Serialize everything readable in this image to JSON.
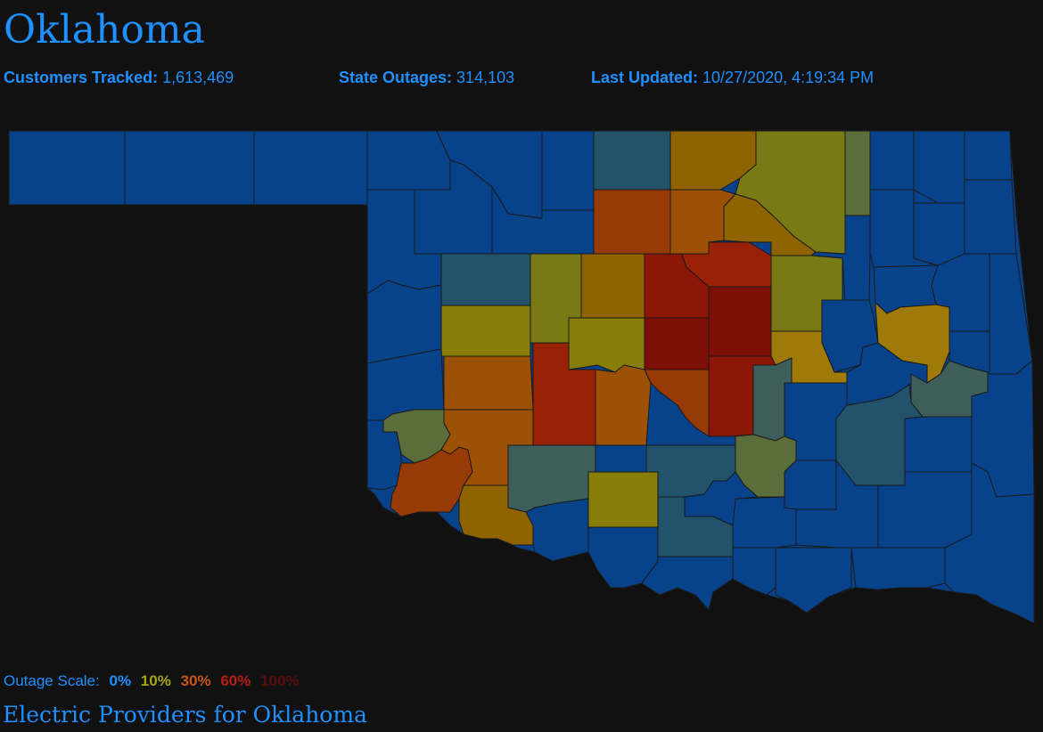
{
  "header": {
    "title": "Oklahoma",
    "customers_label": "Customers Tracked:",
    "customers_value": "1,613,469",
    "outages_label": "State Outages:",
    "outages_value": "314,103",
    "updated_label": "Last Updated:",
    "updated_value": "10/27/2020, 4:19:34 PM"
  },
  "scale": {
    "label": "Outage Scale:",
    "stops": [
      {
        "text": "0%",
        "color": "#1e90ff"
      },
      {
        "text": "10%",
        "color": "#a5a516"
      },
      {
        "text": "30%",
        "color": "#c9561a"
      },
      {
        "text": "60%",
        "color": "#b81d14"
      },
      {
        "text": "100%",
        "color": "#5a0f0f"
      }
    ]
  },
  "providers_link": "Electric Providers for Oklahoma",
  "map": {
    "base_color": "#07428a",
    "border_color": "#1a1a1a",
    "palette": {
      "blue": "#07428a",
      "teal": "#23536b",
      "slate": "#3d5e5a",
      "olive_green": "#5b6d3a",
      "olive": "#7a7a14",
      "yellow": "#877d08",
      "mustard": "#a07a08",
      "amber": "#8f6300",
      "orange": "#9c5106",
      "burnt": "#973a06",
      "rust": "#992206",
      "red": "#8c1607",
      "dark_red": "#7d0f07"
    }
  }
}
